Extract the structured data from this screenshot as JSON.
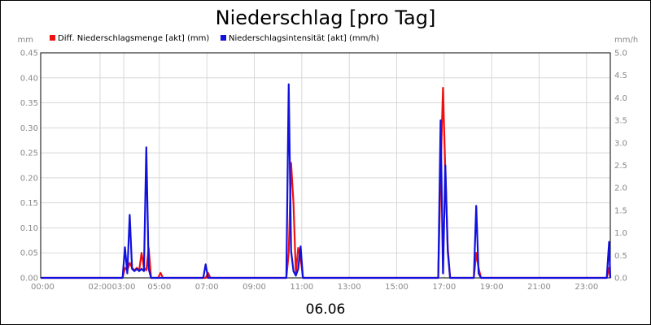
{
  "chart_data": {
    "type": "line",
    "title": "Niederschlag [pro Tag]",
    "xlabel": "06.06",
    "left_axis_unit": "mm",
    "right_axis_unit": "mm/h",
    "left_ylim": [
      0,
      0.45
    ],
    "right_ylim": [
      0,
      5.0
    ],
    "left_ticks": [
      "0.00",
      "0.05",
      "0.10",
      "0.15",
      "0.20",
      "0.25",
      "0.30",
      "0.35",
      "0.40",
      "0.45"
    ],
    "right_ticks": [
      "0.0",
      "0.5",
      "1.0",
      "1.5",
      "2.0",
      "2.5",
      "3.0",
      "3.5",
      "4.0",
      "4.5",
      "5.0"
    ],
    "x_range_hours": [
      0,
      24
    ],
    "x_ticks": [
      {
        "t": 0,
        "label": "00:00"
      },
      {
        "t": 2.5,
        "label": "02:00"
      },
      {
        "t": 3.5,
        "label": "03:00"
      },
      {
        "t": 5,
        "label": "05:00"
      },
      {
        "t": 7,
        "label": "07:00"
      },
      {
        "t": 9,
        "label": "09:00"
      },
      {
        "t": 11,
        "label": "11:00"
      },
      {
        "t": 13,
        "label": "13:00"
      },
      {
        "t": 15,
        "label": "15:00"
      },
      {
        "t": 17,
        "label": "17:00"
      },
      {
        "t": 19,
        "label": "19:00"
      },
      {
        "t": 21,
        "label": "21:00"
      },
      {
        "t": 23,
        "label": "23:00"
      }
    ],
    "grid": true,
    "legend_placement": "top",
    "series": [
      {
        "name": "Diff. Niederschlagsmenge [akt] (mm)",
        "axis": "left",
        "color": "#ee1111",
        "points": [
          [
            0,
            0
          ],
          [
            3.45,
            0
          ],
          [
            3.55,
            0.02
          ],
          [
            3.65,
            0.015
          ],
          [
            3.75,
            0.03
          ],
          [
            3.85,
            0.02
          ],
          [
            3.95,
            0.015
          ],
          [
            4.05,
            0.02
          ],
          [
            4.15,
            0.015
          ],
          [
            4.25,
            0.05
          ],
          [
            4.35,
            0.02
          ],
          [
            4.45,
            0.015
          ],
          [
            4.55,
            0.06
          ],
          [
            4.65,
            0
          ],
          [
            4.95,
            0
          ],
          [
            5.05,
            0.01
          ],
          [
            5.15,
            0
          ],
          [
            6.95,
            0
          ],
          [
            7.05,
            0.01
          ],
          [
            7.15,
            0
          ],
          [
            10.35,
            0
          ],
          [
            10.45,
            0.05
          ],
          [
            10.55,
            0.23
          ],
          [
            10.65,
            0.15
          ],
          [
            10.75,
            0.01
          ],
          [
            10.85,
            0.06
          ],
          [
            10.95,
            0.04
          ],
          [
            11.05,
            0
          ],
          [
            16.75,
            0
          ],
          [
            16.85,
            0.21
          ],
          [
            16.95,
            0.38
          ],
          [
            17.05,
            0.21
          ],
          [
            17.15,
            0.06
          ],
          [
            17.25,
            0
          ],
          [
            18.25,
            0
          ],
          [
            18.35,
            0.05
          ],
          [
            18.45,
            0.02
          ],
          [
            18.55,
            0
          ],
          [
            23.85,
            0
          ],
          [
            23.95,
            0.02
          ],
          [
            24,
            0
          ]
        ]
      },
      {
        "name": "Niederschlagsintensität [akt] (mm/h)",
        "axis": "right",
        "color": "#1111dd",
        "points": [
          [
            0,
            0
          ],
          [
            3.45,
            0
          ],
          [
            3.55,
            0.68
          ],
          [
            3.65,
            0.1
          ],
          [
            3.75,
            1.4
          ],
          [
            3.85,
            0.2
          ],
          [
            3.95,
            0.15
          ],
          [
            4.05,
            0.2
          ],
          [
            4.15,
            0.15
          ],
          [
            4.25,
            0.2
          ],
          [
            4.35,
            0.15
          ],
          [
            4.45,
            2.9
          ],
          [
            4.55,
            0.2
          ],
          [
            4.65,
            0
          ],
          [
            6.85,
            0
          ],
          [
            6.95,
            0.3
          ],
          [
            7.05,
            0
          ],
          [
            10.35,
            0
          ],
          [
            10.45,
            4.3
          ],
          [
            10.55,
            0.6
          ],
          [
            10.65,
            0.15
          ],
          [
            10.75,
            0.05
          ],
          [
            10.85,
            0.2
          ],
          [
            10.95,
            0.7
          ],
          [
            11.05,
            0
          ],
          [
            16.75,
            0
          ],
          [
            16.85,
            3.5
          ],
          [
            16.95,
            0.1
          ],
          [
            17.05,
            2.5
          ],
          [
            17.15,
            0.6
          ],
          [
            17.25,
            0
          ],
          [
            18.25,
            0
          ],
          [
            18.35,
            1.6
          ],
          [
            18.45,
            0.1
          ],
          [
            18.55,
            0
          ],
          [
            23.85,
            0
          ],
          [
            23.95,
            0.8
          ],
          [
            24,
            0
          ]
        ]
      }
    ]
  }
}
